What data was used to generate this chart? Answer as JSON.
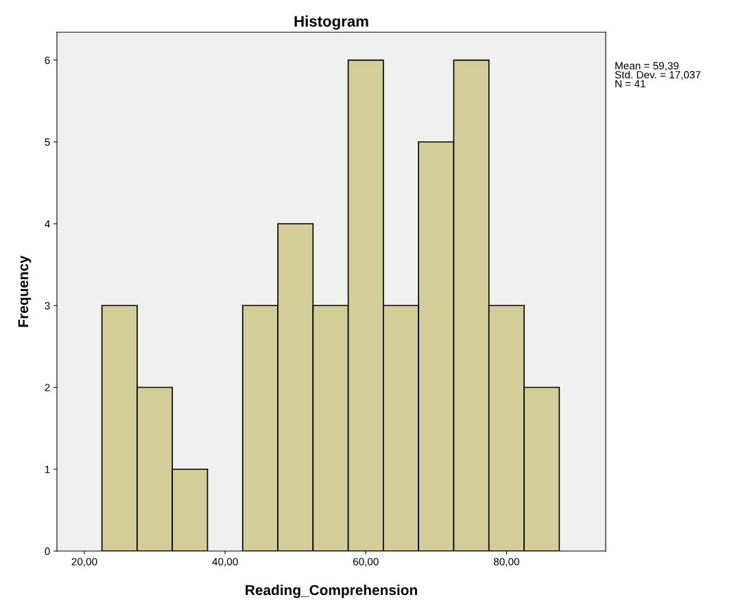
{
  "chart_data": {
    "type": "histogram",
    "title": "Histogram",
    "xlabel": "Reading_Comprehension",
    "ylabel": "Frequency",
    "bins": [
      22.5,
      27.5,
      32.5,
      37.5,
      42.5,
      47.5,
      52.5,
      57.5,
      62.5,
      67.5,
      72.5,
      77.5,
      82.5,
      87.5
    ],
    "values": [
      3,
      2,
      1,
      0,
      3,
      4,
      3,
      6,
      3,
      5,
      6,
      3,
      2
    ],
    "color": "#d3ce97",
    "xlim": [
      16.1,
      94.1
    ],
    "ylim": [
      0,
      6.34
    ],
    "xticks": [
      {
        "value": 20,
        "label": "20,00"
      },
      {
        "value": 40,
        "label": "40,00"
      },
      {
        "value": 60,
        "label": "60,00"
      },
      {
        "value": 80,
        "label": "80,00"
      }
    ],
    "yticks": [
      0,
      1,
      2,
      3,
      4,
      5,
      6
    ],
    "annotations": [
      "Mean = 59,39",
      "Std. Dev. = 17,037",
      "N = 41"
    ]
  }
}
